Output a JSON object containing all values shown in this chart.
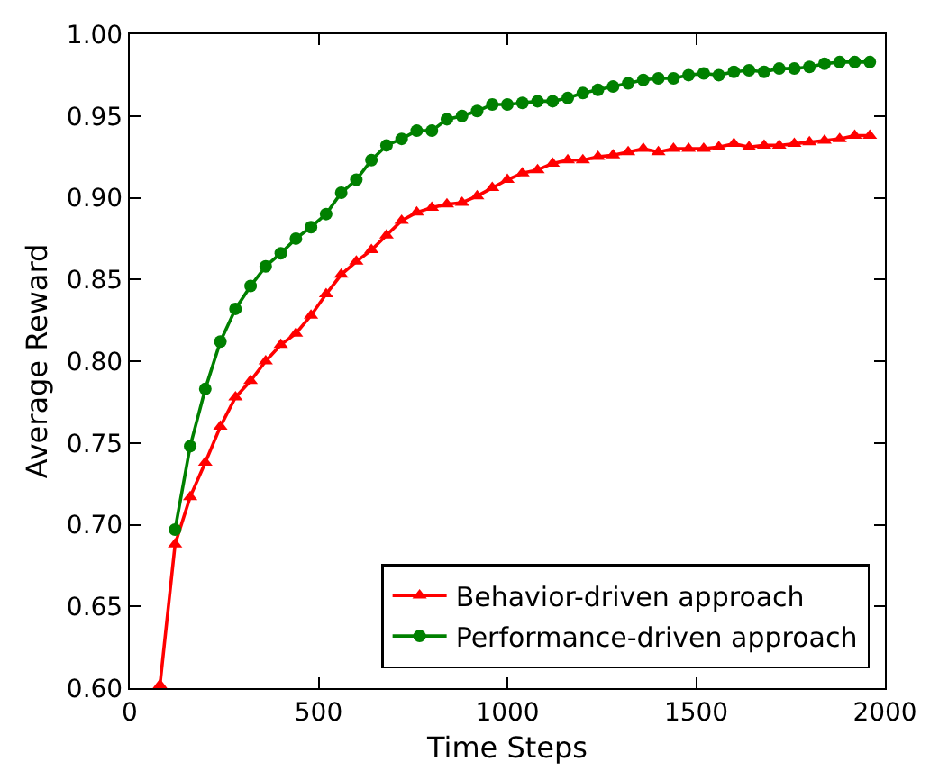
{
  "chart_data": {
    "type": "line",
    "xlabel": "Time Steps",
    "ylabel": "Average Reward",
    "x": [
      80,
      120,
      160,
      200,
      240,
      280,
      320,
      360,
      400,
      440,
      480,
      520,
      560,
      600,
      640,
      680,
      720,
      760,
      800,
      840,
      880,
      920,
      960,
      1000,
      1040,
      1080,
      1120,
      1160,
      1200,
      1240,
      1280,
      1320,
      1360,
      1400,
      1440,
      1480,
      1520,
      1560,
      1600,
      1640,
      1680,
      1720,
      1760,
      1800,
      1840,
      1880,
      1920,
      1960
    ],
    "series": [
      {
        "name": "Behavior-driven approach",
        "color": "#ff0000",
        "marker": "triangle",
        "values": [
          0.602,
          0.688,
          0.717,
          0.738,
          0.76,
          0.778,
          0.788,
          0.8,
          0.81,
          0.817,
          0.828,
          0.841,
          0.853,
          0.861,
          0.868,
          0.877,
          0.886,
          0.891,
          0.894,
          0.896,
          0.897,
          0.901,
          0.906,
          0.911,
          0.915,
          0.917,
          0.921,
          0.923,
          0.923,
          0.925,
          0.926,
          0.928,
          0.93,
          0.928,
          0.93,
          0.93,
          0.93,
          0.931,
          0.933,
          0.931,
          0.932,
          0.932,
          0.933,
          0.934,
          0.935,
          0.936,
          0.938,
          0.938
        ]
      },
      {
        "name": "Performance-driven approach",
        "color": "#008000",
        "marker": "circle",
        "values": [
          null,
          0.697,
          0.748,
          0.783,
          0.812,
          0.832,
          0.846,
          0.858,
          0.866,
          0.875,
          0.882,
          0.89,
          0.903,
          0.911,
          0.923,
          0.932,
          0.936,
          0.941,
          0.941,
          0.948,
          0.95,
          0.953,
          0.957,
          0.957,
          0.958,
          0.959,
          0.959,
          0.961,
          0.964,
          0.966,
          0.968,
          0.97,
          0.972,
          0.973,
          0.973,
          0.975,
          0.976,
          0.975,
          0.977,
          0.978,
          0.977,
          0.979,
          0.979,
          0.98,
          0.982,
          0.983,
          0.983,
          0.983
        ]
      }
    ],
    "xlim": [
      0,
      2000
    ],
    "xticks": [
      0,
      500,
      1000,
      1500,
      2000
    ],
    "ylim": [
      0.6,
      1.0
    ],
    "yticks": [
      {
        "value": 0.6,
        "label": "0.60"
      },
      {
        "value": 0.65,
        "label": "0.65"
      },
      {
        "value": 0.7,
        "label": "0.70"
      },
      {
        "value": 0.75,
        "label": "0.75"
      },
      {
        "value": 0.8,
        "label": "0.80"
      },
      {
        "value": 0.85,
        "label": "0.85"
      },
      {
        "value": 0.9,
        "label": "0.90"
      },
      {
        "value": 0.95,
        "label": "0.95"
      },
      {
        "value": 1.0,
        "label": "1.00"
      }
    ],
    "grid": false,
    "legend": "bottom right",
    "line_style": "solid"
  }
}
